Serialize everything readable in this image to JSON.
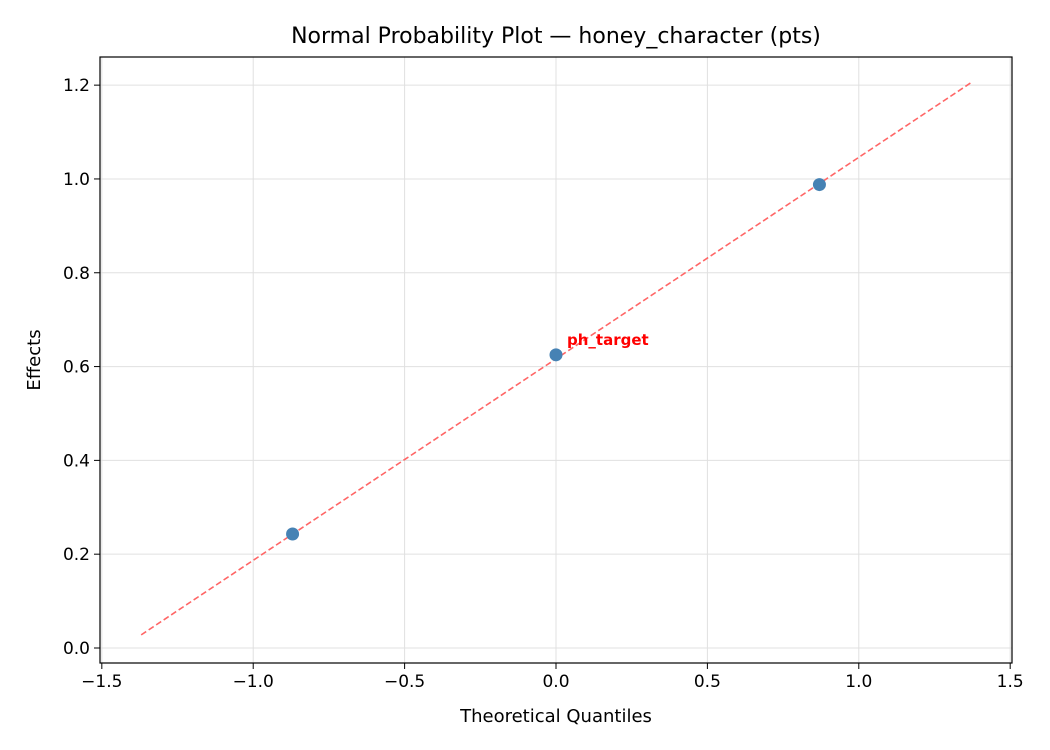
{
  "chart_data": {
    "type": "scatter",
    "title": "Normal Probability Plot — honey_character (pts)",
    "xlabel": "Theoretical Quantiles",
    "ylabel": "Effects",
    "xlim": [
      -1.506,
      1.506
    ],
    "ylim": [
      -0.032,
      1.26
    ],
    "xticks": [
      -1.5,
      -1.0,
      -0.5,
      0.0,
      0.5,
      1.0,
      1.5
    ],
    "xtick_labels": [
      "−1.5",
      "−1.0",
      "−0.5",
      "0.0",
      "0.5",
      "1.0",
      "1.5"
    ],
    "yticks": [
      0.0,
      0.2,
      0.4,
      0.6,
      0.8,
      1.0,
      1.2
    ],
    "ytick_labels": [
      "0.0",
      "0.2",
      "0.4",
      "0.6",
      "0.8",
      "1.0",
      "1.2"
    ],
    "grid": true,
    "points": [
      {
        "x": -0.87,
        "y": 0.243
      },
      {
        "x": 0.0,
        "y": 0.625
      },
      {
        "x": 0.87,
        "y": 0.988
      }
    ],
    "fit_line": {
      "x": [
        -1.37,
        1.37
      ],
      "y": [
        0.028,
        1.205
      ]
    },
    "annotations": [
      {
        "text": "ph_target",
        "x": 0.0,
        "y": 0.625
      }
    ],
    "colors": {
      "points": "#4682b4",
      "line": "#ff6666",
      "annotation": "#ff0000",
      "grid": "#e0e0e0"
    }
  }
}
